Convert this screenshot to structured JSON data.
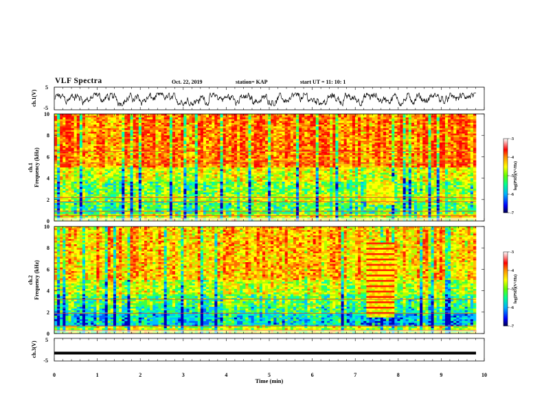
{
  "header": {
    "title": "VLF Spectra",
    "date": "Oct. 22, 2019",
    "station": "station= KAP",
    "start": "start  UT =   11: 10: 1"
  },
  "colors": {
    "bar_stops": [
      "#000060",
      "#0000ff",
      "#00a0ff",
      "#00ffa0",
      "#40ff00",
      "#c0ff00",
      "#ffff00",
      "#ffb000",
      "#ff3000",
      "#ff0000",
      "#ffb0b0",
      "#ffffff"
    ]
  },
  "chart_data": [
    {
      "type": "line",
      "ylabel": "ch.1(V)",
      "ylim": [
        -5,
        5
      ],
      "yticks": [
        "5",
        "-5"
      ],
      "xlim": [
        0,
        10
      ],
      "description_of_series": "noisy waveform oscillating roughly between -3 and +2 V"
    },
    {
      "type": "heatmap",
      "ylabel": "ch.1",
      "ylabel2": "Frequency (kHz)",
      "ylim": [
        0,
        10
      ],
      "yticks": [
        "0",
        "2",
        "4",
        "6",
        "8",
        "10"
      ],
      "xlim": [
        0,
        10
      ],
      "colorbar": {
        "label": "log(PSD)(V²/Hz)",
        "ticks": [
          "-3",
          "-4",
          "-5",
          "-6",
          "-7"
        ],
        "range": [
          -7,
          -3
        ]
      }
    },
    {
      "type": "heatmap",
      "ylabel": "ch.2",
      "ylabel2": "Frequency (kHz)",
      "ylim": [
        0,
        10
      ],
      "yticks": [
        "0",
        "2",
        "4",
        "6",
        "8",
        "10"
      ],
      "xlim": [
        0,
        10
      ],
      "colorbar": {
        "label": "log(PSD)(V²/Hz)",
        "ticks": [
          "-3",
          "-4",
          "-5",
          "-6",
          "-7"
        ],
        "range": [
          -7,
          -3
        ]
      }
    },
    {
      "type": "line",
      "ylabel": "ch.3(V)",
      "ylim": [
        -5,
        5
      ],
      "yticks": [
        "5",
        "-5"
      ],
      "xlim": [
        0,
        10
      ],
      "xlabel": "Time (min)",
      "xticks": [
        "0",
        "1",
        "2",
        "3",
        "4",
        "5",
        "6",
        "7",
        "8",
        "9",
        "10"
      ],
      "constant_value": -1.5
    }
  ]
}
